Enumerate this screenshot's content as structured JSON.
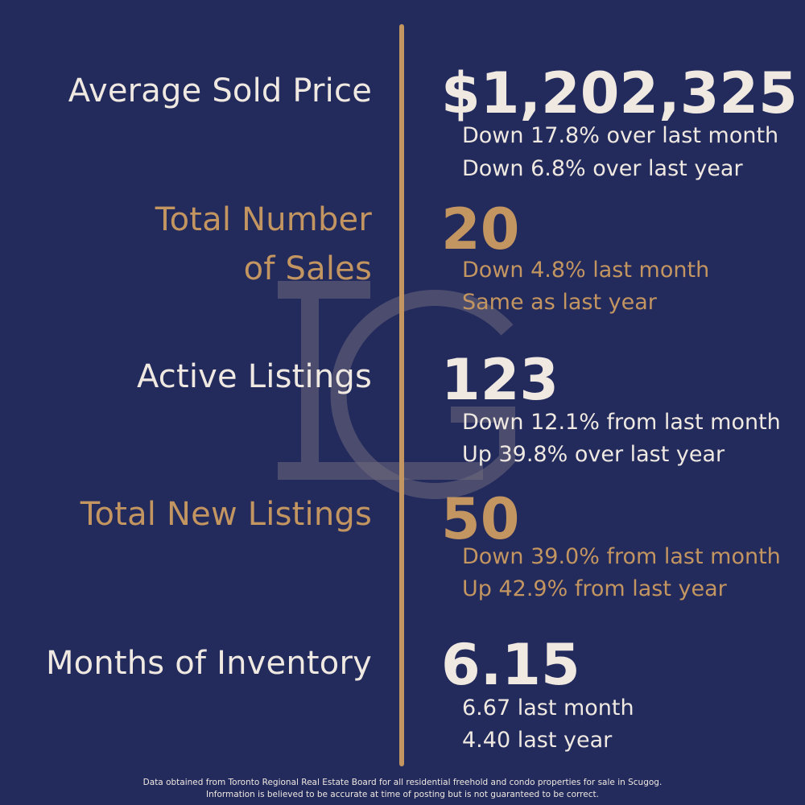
{
  "metrics": [
    {
      "label_lines": [
        "Average Sold Price"
      ],
      "value": "$1,202,325",
      "notes": [
        "Down 17.8% over last month",
        "Down 6.8% over last year"
      ]
    },
    {
      "label_lines": [
        "Total Number",
        "of Sales"
      ],
      "value": "20",
      "notes": [
        "Down 4.8% last month",
        "Same as last year"
      ]
    },
    {
      "label_lines": [
        "Active Listings"
      ],
      "value": "123",
      "notes": [
        "Down 12.1% from last month",
        "Up 39.8% over last year"
      ]
    },
    {
      "label_lines": [
        "Total New Listings"
      ],
      "value": "50",
      "notes": [
        "Down 39.0% from last month",
        "Up 42.9% from last year"
      ]
    },
    {
      "label_lines": [
        "Months of Inventory"
      ],
      "value": "6.15",
      "notes": [
        "6.67 last month",
        "4.40 last year"
      ]
    }
  ],
  "footer": {
    "line1": "Data obtained from Toronto Regional Real Estate Board for all residential freehold and condo properties for sale in Scugog.",
    "line2": "Information is believed to be accurate at time of posting but is not guaranteed to be correct."
  },
  "colors": {
    "background": "#232a5c",
    "gold": "#c39560",
    "cream": "#efe9e2"
  },
  "watermark_icon": "lg-monogram-logo"
}
